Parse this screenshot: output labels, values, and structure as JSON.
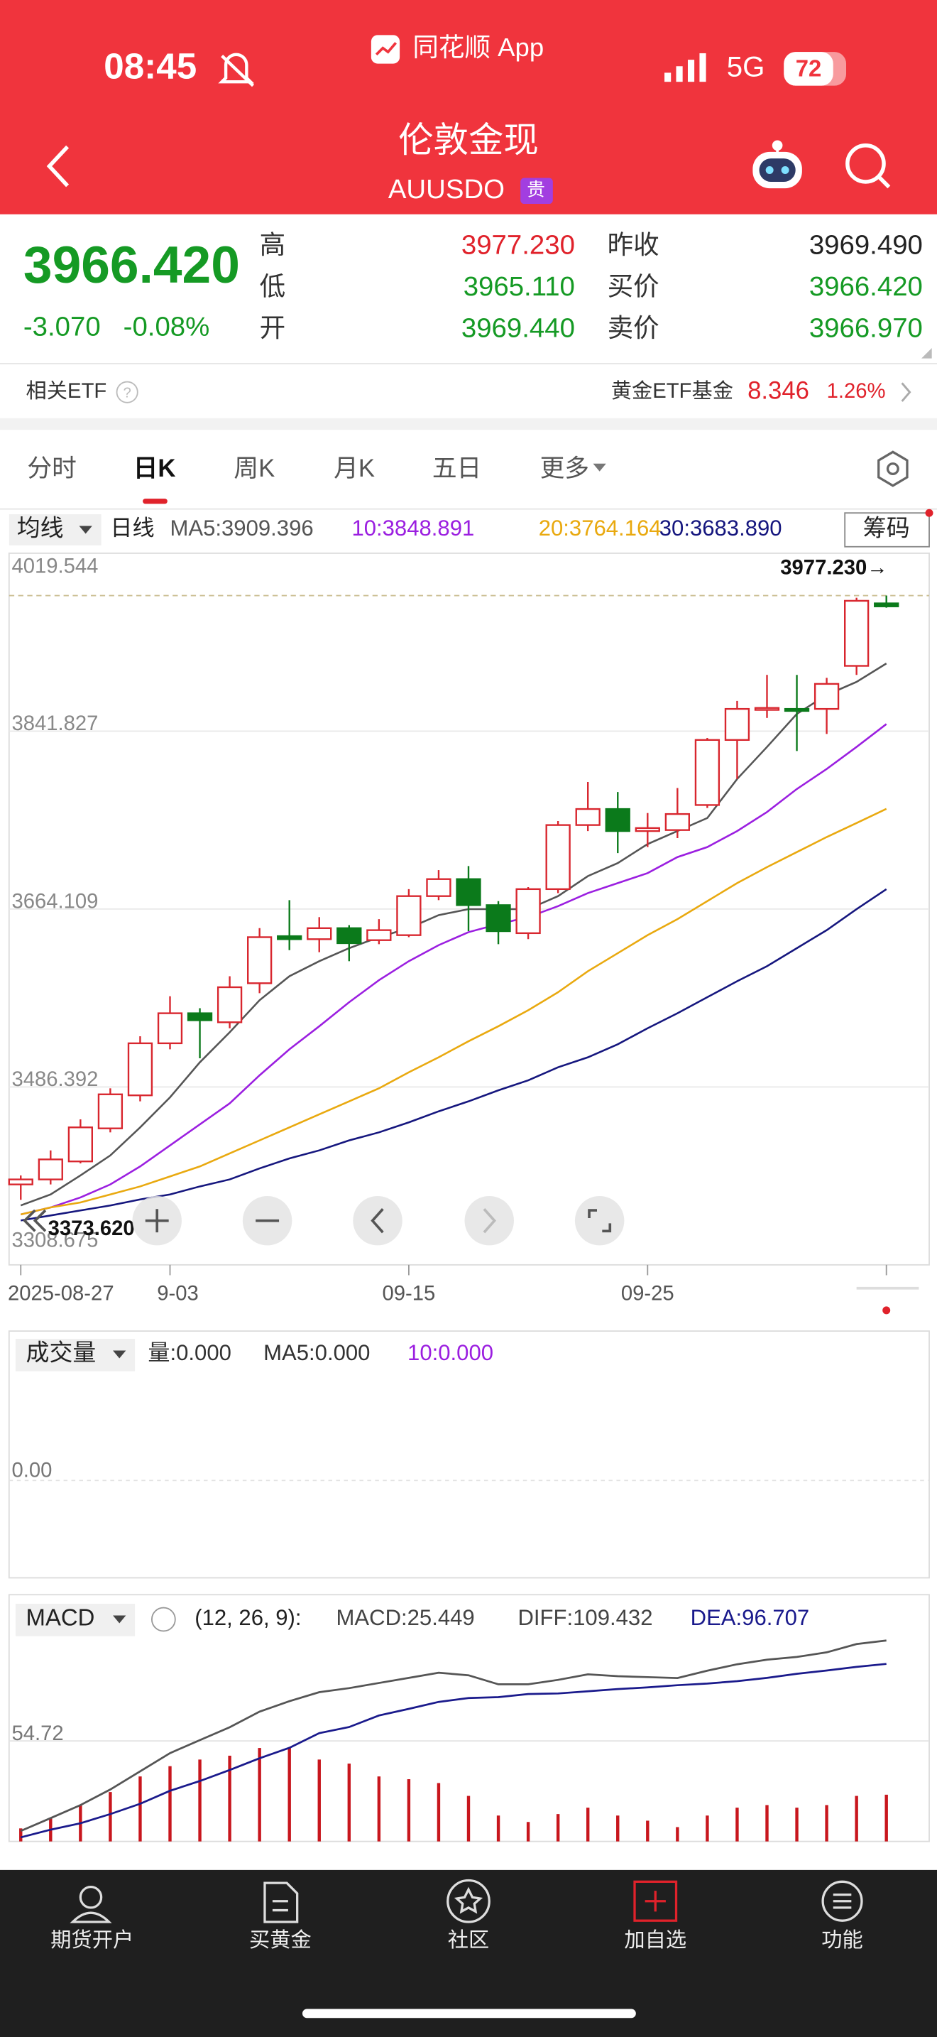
{
  "status_bar": {
    "time": "08:45",
    "app": "同花顺 App",
    "network": "5G",
    "battery": "72"
  },
  "header": {
    "title": "伦敦金现",
    "code": "AUUSDO",
    "badge": "贵"
  },
  "quote": {
    "price": "3966.420",
    "change": "-3.070",
    "change_pct": "-0.08%",
    "fields": [
      {
        "label": "高",
        "value": "3977.230"
      },
      {
        "label": "低",
        "value": "3965.110"
      },
      {
        "label": "开",
        "value": "3969.440"
      },
      {
        "label": "昨收",
        "value": "3969.490"
      },
      {
        "label": "买价",
        "value": "3966.420"
      },
      {
        "label": "卖价",
        "value": "3966.970"
      }
    ]
  },
  "etf": {
    "label": "相关ETF",
    "name": "黄金ETF基金",
    "price": "8.346",
    "change_pct": "1.26%"
  },
  "tabs": [
    "分时",
    "日K",
    "周K",
    "月K",
    "五日",
    "更多"
  ],
  "toolbar": {
    "indicator": "均线",
    "period": "日线",
    "chips": "筹码"
  },
  "chart_data": [
    {
      "type": "candlestick",
      "categories": [
        "2025-08-27",
        null,
        null,
        null,
        null,
        "9-03",
        null,
        null,
        null,
        null,
        null,
        null,
        null,
        "09-15",
        null,
        null,
        null,
        null,
        null,
        null,
        null,
        "09-25",
        null,
        null,
        null,
        null,
        null,
        null,
        null,
        null
      ],
      "open": [
        3389,
        3394,
        3412,
        3445,
        3478,
        3530,
        3560,
        3551,
        3590,
        3637,
        3634,
        3645,
        3633,
        3638,
        3677,
        3694,
        3668,
        3640,
        3684,
        3748,
        3764,
        3742,
        3743,
        3768,
        3833,
        3863,
        3864,
        3864,
        3907,
        3969.44
      ],
      "high": [
        3398,
        3423,
        3454,
        3485,
        3537,
        3577,
        3565,
        3597,
        3645,
        3673,
        3656,
        3648,
        3654,
        3684,
        3703,
        3707,
        3672,
        3686,
        3752,
        3791,
        3781,
        3760,
        3785,
        3835,
        3872,
        3898,
        3898,
        3895,
        3975,
        3977.23
      ],
      "low": [
        3373.62,
        3389,
        3410,
        3441,
        3472,
        3524,
        3515,
        3545,
        3580,
        3623,
        3621,
        3612,
        3629,
        3636,
        3673,
        3642,
        3629,
        3634,
        3680,
        3742,
        3720,
        3726,
        3735,
        3765,
        3794,
        3855,
        3822,
        3839,
        3898,
        3965.11
      ],
      "close": [
        3394,
        3414,
        3446,
        3479,
        3530,
        3560,
        3553,
        3586,
        3636,
        3634,
        3645,
        3630,
        3643,
        3677,
        3694,
        3668,
        3642,
        3684,
        3748,
        3764,
        3742,
        3745,
        3759,
        3833,
        3864,
        3865,
        3862,
        3889,
        3972,
        3966.42
      ],
      "up_color": "#d8262e",
      "down_color": "#0b7a1b",
      "series": [
        {
          "name": "MA5:3909.396",
          "color": "#555555",
          "values": [
            3368,
            3379,
            3398,
            3418,
            3446,
            3476,
            3511,
            3541,
            3573,
            3597,
            3612,
            3625,
            3636,
            3645,
            3658,
            3664,
            3664,
            3664,
            3677,
            3697,
            3710,
            3729,
            3742,
            3755,
            3794,
            3826,
            3859,
            3878,
            3891,
            3909.396
          ]
        },
        {
          "name": "10:3848.891",
          "color": "#9b1fe0",
          "values": [
            3359,
            3366,
            3376,
            3389,
            3407,
            3428,
            3449,
            3470,
            3498,
            3524,
            3547,
            3571,
            3593,
            3612,
            3628,
            3641,
            3649,
            3656,
            3667,
            3680,
            3690,
            3700,
            3716,
            3726,
            3742,
            3761,
            3784,
            3804,
            3826,
            3848.891
          ]
        },
        {
          "name": "20:3764.164",
          "color": "#e9a90f",
          "values": [
            3359,
            3366,
            3371,
            3379,
            3387,
            3397,
            3407,
            3420,
            3433,
            3446,
            3459,
            3472,
            3485,
            3501,
            3516,
            3532,
            3547,
            3563,
            3581,
            3602,
            3620,
            3638,
            3654,
            3672,
            3690,
            3706,
            3721,
            3736,
            3750,
            3764.164
          ]
        },
        {
          "name": "30:3683.890",
          "color": "#15167e",
          "values": [
            3353,
            3358,
            3363,
            3368,
            3374,
            3379,
            3387,
            3394,
            3405,
            3415,
            3423,
            3433,
            3441,
            3451,
            3462,
            3472,
            3483,
            3493,
            3506,
            3516,
            3529,
            3545,
            3560,
            3576,
            3592,
            3607,
            3625,
            3643,
            3664,
            3683.89
          ]
        }
      ],
      "ylim": [
        3308.675,
        4019.544
      ],
      "yticks": [
        4019.544,
        3841.827,
        3664.109,
        3486.392,
        3308.675
      ],
      "grid": true,
      "annotations": {
        "max": "3977.230→",
        "min": "3373.620"
      }
    },
    {
      "type": "volume",
      "selector": "成交量",
      "legend": [
        "量:0.000",
        "MA5:0.000",
        "10:0.000"
      ],
      "legend_colors": [
        "#333333",
        "#333333",
        "#9b1fe0"
      ],
      "ylim": [
        -1,
        1
      ],
      "yticks": [
        {
          "value": 0,
          "label": "0.00"
        }
      ]
    },
    {
      "type": "macd",
      "selector": "MACD",
      "params": "(12, 26, 9):",
      "series": [
        {
          "name": "MACD:25.449",
          "color": "#c8161d",
          "values": [
            7.1,
            12.7,
            19.8,
            26.9,
            35.4,
            41.0,
            44.6,
            46.7,
            50.9,
            50.9,
            44.6,
            42.4,
            35.4,
            33.9,
            31.8,
            24.8,
            14.1,
            10.6,
            14.9,
            18.4,
            14.1,
            11.3,
            7.8,
            14.1,
            18.4,
            19.8,
            18.4,
            19.8,
            24.8,
            25.449
          ]
        },
        {
          "name": "DIFF:109.432",
          "color": "#555555",
          "values": [
            5.7,
            12.7,
            19.8,
            28.3,
            38.2,
            48.1,
            55.2,
            62.2,
            70.7,
            76.4,
            81.3,
            83.5,
            86.3,
            89.1,
            91.9,
            90.5,
            85.6,
            85.6,
            88.0,
            91.0,
            90.0,
            89.5,
            89.0,
            93.0,
            96.5,
            99.0,
            100.5,
            103.0,
            107.5,
            109.432
          ]
        },
        {
          "name": "DEA:96.707",
          "color": "#1a1a8c",
          "values": [
            2.2,
            6.4,
            9.9,
            14.9,
            20.5,
            27.6,
            32.9,
            38.9,
            45.3,
            51.0,
            59.0,
            62.3,
            68.6,
            72.2,
            76.0,
            78.1,
            78.6,
            80.3,
            80.6,
            81.8,
            83.0,
            83.9,
            85.1,
            86.0,
            87.3,
            89.1,
            91.3,
            93.1,
            95.1,
            96.707
          ]
        }
      ],
      "ylim": [
        0,
        134.4
      ],
      "yticks": [
        54.72
      ]
    }
  ],
  "nav": [
    "期货开户",
    "买黄金",
    "社区",
    "加自选",
    "功能"
  ]
}
